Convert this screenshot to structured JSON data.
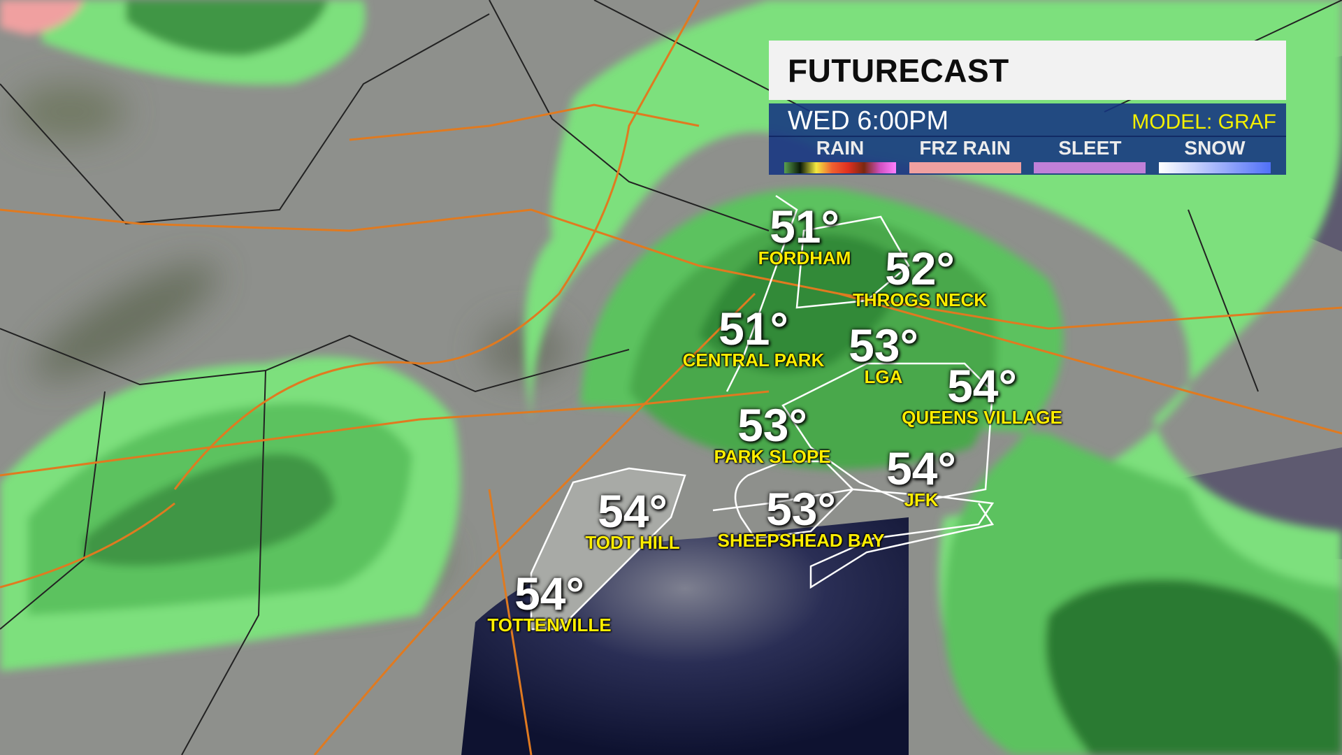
{
  "header": {
    "title": "FUTURECAST",
    "time": "WED 6:00PM",
    "model": "MODEL: GRAF"
  },
  "legend": [
    {
      "label": "RAIN",
      "gradient": "linear-gradient(90deg,#5aa050,#0a1a08,#f2e840,#f06030,#e03020,#7a2810,#d050c0,#ff80ff)"
    },
    {
      "label": "FRZ RAIN",
      "gradient": "#f0a0a0"
    },
    {
      "label": "SLEET",
      "gradient": "#c080d8"
    },
    {
      "label": "SNOW",
      "gradient": "linear-gradient(90deg,#ffffff,#5070f8)"
    }
  ],
  "cities": [
    {
      "temp": "51°",
      "name": "FORDHAM"
    },
    {
      "temp": "52°",
      "name": "THROGS NECK"
    },
    {
      "temp": "51°",
      "name": "CENTRAL PARK"
    },
    {
      "temp": "53°",
      "name": "LGA"
    },
    {
      "temp": "54°",
      "name": "QUEENS VILLAGE"
    },
    {
      "temp": "53°",
      "name": "PARK SLOPE"
    },
    {
      "temp": "54°",
      "name": "JFK"
    },
    {
      "temp": "54°",
      "name": "TODT HILL"
    },
    {
      "temp": "53°",
      "name": "SHEEPSHEAD BAY"
    },
    {
      "temp": "54°",
      "name": "TOTTENVILLE"
    }
  ],
  "colors": {
    "rain_light": "#7de07d",
    "rain_mid": "#4fb550",
    "rain_dark": "#2c7a30",
    "water": "#141a3a",
    "roads": "#e07a20"
  }
}
